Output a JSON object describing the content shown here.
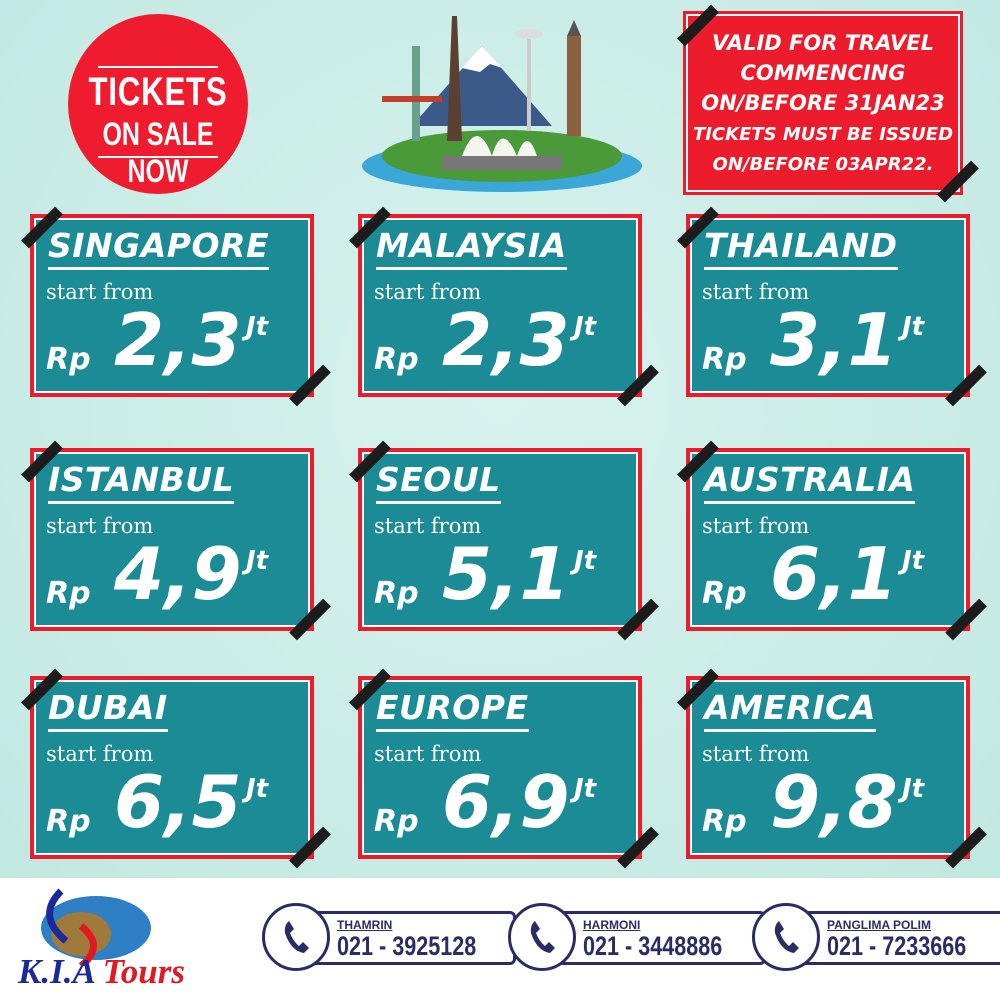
{
  "promo": {
    "line1": "TICKETS",
    "line2": "ON SALE NOW"
  },
  "validity": {
    "line1": "VALID FOR TRAVEL",
    "line2": "COMMENCING",
    "line3": "ON/BEFORE 31JAN23",
    "line4": "TICKETS MUST BE ISSUED",
    "line5": "ON/BEFORE 03APR22."
  },
  "colors": {
    "card": "#1b8b95",
    "accent": "#ec1c2d",
    "navy": "#2a2d64",
    "background": "#c9ece6"
  },
  "destinations": [
    {
      "city": "SINGAPORE",
      "start": "start from",
      "currency": "Rp",
      "price": "2,3",
      "unit": "Jt"
    },
    {
      "city": "MALAYSIA",
      "start": "start from",
      "currency": "Rp",
      "price": "2,3",
      "unit": "Jt"
    },
    {
      "city": "THAILAND",
      "start": "start from",
      "currency": "Rp",
      "price": "3,1",
      "unit": "Jt"
    },
    {
      "city": "ISTANBUL",
      "start": "start from",
      "currency": "Rp",
      "price": "4,9",
      "unit": "Jt"
    },
    {
      "city": "SEOUL",
      "start": "start from",
      "currency": "Rp",
      "price": "5,1",
      "unit": "Jt"
    },
    {
      "city": "AUSTRALIA",
      "start": "start from",
      "currency": "Rp",
      "price": "6,1",
      "unit": "Jt"
    },
    {
      "city": "DUBAI",
      "start": "start from",
      "currency": "Rp",
      "price": "6,5",
      "unit": "Jt"
    },
    {
      "city": "EUROPE",
      "start": "start from",
      "currency": "Rp",
      "price": "6,9",
      "unit": "Jt"
    },
    {
      "city": "AMERICA",
      "start": "start from",
      "currency": "Rp",
      "price": "9,8",
      "unit": "Jt"
    }
  ],
  "footer": {
    "logo": {
      "part1": "K.I.A",
      "part2": "Tours"
    },
    "contacts": [
      {
        "branch": "THAMRIN",
        "phone": "021 - 3925128",
        "icon": "phone-icon"
      },
      {
        "branch": "HARMONI",
        "phone": "021 - 3448886",
        "icon": "phone-icon"
      },
      {
        "branch": "PANGLIMA POLIM",
        "phone": "021 - 7233666",
        "icon": "phone-icon"
      }
    ]
  }
}
